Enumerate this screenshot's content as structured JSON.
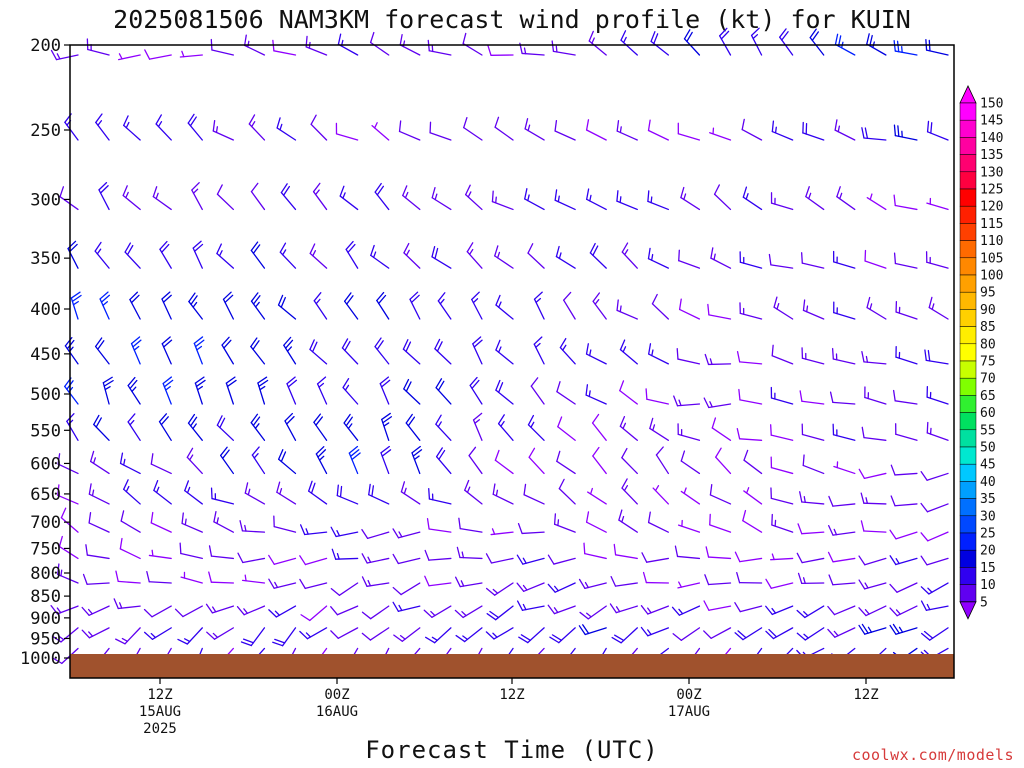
{
  "chart_data": {
    "type": "wind-barb profile",
    "title": "2025081506 NAM3KM forecast wind profile (kt) for KUIN",
    "xlabel": "Forecast Time (UTC)",
    "ylabel": "",
    "credit": "coolwx.com/models",
    "y_scale": "log-pressure (hPa, inverted)",
    "ylim": [
      1000,
      200
    ],
    "pressure_levels": [
      200,
      250,
      300,
      350,
      400,
      450,
      500,
      550,
      600,
      650,
      700,
      750,
      800,
      850,
      900,
      950,
      1000
    ],
    "x_ticks": [
      {
        "lines": [
          "12Z",
          "15AUG",
          "2025"
        ]
      },
      {
        "lines": [
          "00Z",
          "16AUG"
        ]
      },
      {
        "lines": [
          "12Z"
        ]
      },
      {
        "lines": [
          "00Z",
          "17AUG"
        ]
      },
      {
        "lines": [
          "12Z"
        ]
      }
    ],
    "colorbar": {
      "units": "kt",
      "labels": [
        "150",
        "145",
        "140",
        "135",
        "130",
        "125",
        "120",
        "115",
        "110",
        "105",
        "100",
        "95",
        "90",
        "85",
        "80",
        "75",
        "70",
        "65",
        "60",
        "55",
        "50",
        "45",
        "40",
        "35",
        "30",
        "25",
        "20",
        "15",
        "10",
        "5"
      ],
      "colors": [
        "#ff00ff",
        "#ff00d0",
        "#ff00a0",
        "#ff0070",
        "#ff0040",
        "#ff0000",
        "#ff2000",
        "#ff4000",
        "#ff6a00",
        "#ff8800",
        "#ffa000",
        "#ffb800",
        "#ffd000",
        "#ffee00",
        "#ffff00",
        "#c8ff00",
        "#80ff00",
        "#30f030",
        "#00e060",
        "#00e0a0",
        "#00e8d0",
        "#00c8ff",
        "#00a0ff",
        "#0070ff",
        "#0048ff",
        "#0020ff",
        "#0000e0",
        "#3000f0",
        "#6000f0",
        "#9000ff"
      ]
    },
    "surface_color": "#a0522d",
    "slanted_barbs": [
      {
        "time": "early 15AUG",
        "p": 1000,
        "dir": 200,
        "spd": 10
      },
      {
        "time": "12Z 15AUG",
        "p": 250,
        "dir": 310,
        "spd": 20
      },
      {
        "time": "12Z 15AUG",
        "p": 350,
        "dir": 320,
        "spd": 25
      },
      {
        "time": "00Z 16AUG",
        "p": 200,
        "dir": 300,
        "spd": 15
      },
      {
        "time": "12Z 16AUG",
        "p": 200,
        "dir": 280,
        "spd": 10
      },
      {
        "time": "00Z 17AUG",
        "p": 200,
        "dir": 330,
        "spd": 20
      },
      {
        "time": "12Z 17AUG",
        "p": 200,
        "dir": 290,
        "spd": 25
      }
    ],
    "representative_columns": [
      {
        "time": "12Z 15AUG",
        "profile": [
          [
            200,
            270,
            10
          ],
          [
            250,
            310,
            20
          ],
          [
            300,
            320,
            15
          ],
          [
            400,
            330,
            25
          ],
          [
            500,
            330,
            25
          ],
          [
            600,
            300,
            15
          ],
          [
            700,
            300,
            10
          ],
          [
            800,
            280,
            10
          ],
          [
            900,
            230,
            15
          ],
          [
            1000,
            200,
            10
          ]
        ]
      },
      {
        "time": "00Z 16AUG",
        "profile": [
          [
            200,
            300,
            15
          ],
          [
            250,
            300,
            10
          ],
          [
            300,
            320,
            15
          ],
          [
            400,
            320,
            20
          ],
          [
            500,
            330,
            20
          ],
          [
            600,
            330,
            25
          ],
          [
            700,
            260,
            15
          ],
          [
            800,
            250,
            10
          ],
          [
            900,
            230,
            15
          ],
          [
            1000,
            200,
            10
          ]
        ]
      },
      {
        "time": "12Z 16AUG",
        "profile": [
          [
            200,
            280,
            10
          ],
          [
            250,
            290,
            10
          ],
          [
            300,
            300,
            15
          ],
          [
            400,
            320,
            15
          ],
          [
            500,
            320,
            15
          ],
          [
            600,
            320,
            10
          ],
          [
            700,
            280,
            10
          ],
          [
            800,
            250,
            15
          ],
          [
            900,
            240,
            20
          ],
          [
            1000,
            210,
            10
          ]
        ]
      },
      {
        "time": "00Z 17AUG",
        "profile": [
          [
            200,
            330,
            20
          ],
          [
            250,
            290,
            10
          ],
          [
            300,
            300,
            15
          ],
          [
            400,
            290,
            10
          ],
          [
            500,
            270,
            10
          ],
          [
            600,
            310,
            10
          ],
          [
            700,
            300,
            10
          ],
          [
            800,
            260,
            10
          ],
          [
            900,
            240,
            15
          ],
          [
            1000,
            210,
            10
          ]
        ]
      },
      {
        "time": "12Z 17AUG",
        "profile": [
          [
            200,
            290,
            25
          ],
          [
            250,
            290,
            20
          ],
          [
            300,
            290,
            10
          ],
          [
            400,
            290,
            15
          ],
          [
            500,
            290,
            15
          ],
          [
            600,
            260,
            10
          ],
          [
            700,
            250,
            10
          ],
          [
            800,
            250,
            15
          ],
          [
            900,
            250,
            20
          ],
          [
            1000,
            240,
            15
          ]
        ]
      }
    ],
    "time_columns": 29
  }
}
